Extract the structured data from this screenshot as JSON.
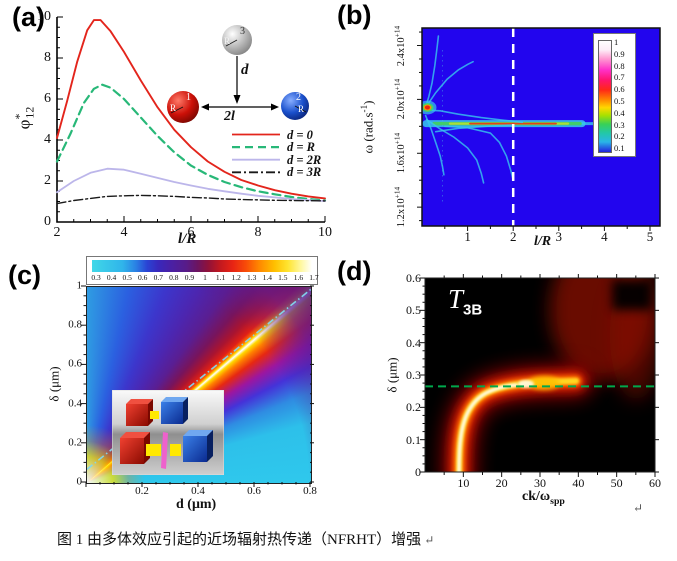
{
  "caption": {
    "text": "图 1  由多体效应引起的近场辐射热传递（NFRHT）增强",
    "return_mark": "↵"
  },
  "chart_data": [
    {
      "type": "line",
      "panel": "(a)",
      "xlabel": "l/R",
      "ylabel": "φ*12",
      "ylabel_parts": {
        "base": "φ",
        "sup": "*",
        "sub": "12"
      },
      "xlim": [
        2,
        10
      ],
      "ylim": [
        0,
        10
      ],
      "x_ticks": [
        "2",
        "4",
        "6",
        "8",
        "10"
      ],
      "y_ticks": [
        "0",
        "2",
        "4",
        "6",
        "8",
        "10"
      ],
      "legend": [
        {
          "label": "d = 0",
          "color": "#e3251c",
          "dash": "none"
        },
        {
          "label": "d = R",
          "color": "#28b878",
          "dash": "8,5"
        },
        {
          "label": "d = 2R",
          "color": "#bcb6ea",
          "dash": "none"
        },
        {
          "label": "d = 3R",
          "color": "#1a1a1a",
          "dash": "9,3,2,3"
        }
      ],
      "series": [
        {
          "name": "d = 0",
          "color": "#e3251c",
          "width": 1.9,
          "dash": "",
          "points": [
            [
              2,
              4.1
            ],
            [
              2.3,
              5.9
            ],
            [
              2.6,
              7.8
            ],
            [
              2.9,
              9.35
            ],
            [
              3.1,
              9.85
            ],
            [
              3.3,
              9.85
            ],
            [
              3.6,
              9.3
            ],
            [
              4,
              8.3
            ],
            [
              4.5,
              6.9
            ],
            [
              5,
              5.6
            ],
            [
              5.5,
              4.5
            ],
            [
              6,
              3.65
            ],
            [
              6.5,
              2.95
            ],
            [
              7,
              2.45
            ],
            [
              7.5,
              2.05
            ],
            [
              8,
              1.78
            ],
            [
              8.5,
              1.55
            ],
            [
              9,
              1.38
            ],
            [
              9.5,
              1.25
            ],
            [
              10,
              1.15
            ]
          ]
        },
        {
          "name": "d = R",
          "color": "#28b878",
          "width": 2.2,
          "dash": "8,5",
          "points": [
            [
              2,
              2.95
            ],
            [
              2.4,
              4.3
            ],
            [
              2.8,
              5.8
            ],
            [
              3.1,
              6.5
            ],
            [
              3.35,
              6.7
            ],
            [
              3.6,
              6.55
            ],
            [
              4,
              6.0
            ],
            [
              4.5,
              5.1
            ],
            [
              5,
              4.2
            ],
            [
              5.5,
              3.4
            ],
            [
              6,
              2.75
            ],
            [
              6.5,
              2.3
            ],
            [
              7,
              1.95
            ],
            [
              7.5,
              1.7
            ],
            [
              8,
              1.5
            ],
            [
              8.5,
              1.35
            ],
            [
              9,
              1.22
            ],
            [
              9.5,
              1.12
            ],
            [
              10,
              1.05
            ]
          ]
        },
        {
          "name": "d = 2R",
          "color": "#bcb6ea",
          "width": 1.8,
          "dash": "",
          "points": [
            [
              2,
              1.45
            ],
            [
              2.5,
              2.0
            ],
            [
              3,
              2.4
            ],
            [
              3.5,
              2.6
            ],
            [
              4,
              2.55
            ],
            [
              4.5,
              2.35
            ],
            [
              5,
              2.15
            ],
            [
              5.5,
              1.95
            ],
            [
              6,
              1.78
            ],
            [
              6.5,
              1.62
            ],
            [
              7,
              1.5
            ],
            [
              7.5,
              1.38
            ],
            [
              8,
              1.28
            ],
            [
              8.5,
              1.2
            ],
            [
              9,
              1.12
            ],
            [
              9.5,
              1.07
            ],
            [
              10,
              1.02
            ]
          ]
        },
        {
          "name": "d = 3R",
          "color": "#1a1a1a",
          "width": 1.4,
          "dash": "9,3,2,3",
          "points": [
            [
              2,
              0.9
            ],
            [
              2.5,
              1.05
            ],
            [
              3,
              1.15
            ],
            [
              3.5,
              1.25
            ],
            [
              4,
              1.28
            ],
            [
              4.5,
              1.3
            ],
            [
              5,
              1.28
            ],
            [
              5.5,
              1.25
            ],
            [
              6,
              1.2
            ],
            [
              6.5,
              1.17
            ],
            [
              7,
              1.12
            ],
            [
              7.5,
              1.1
            ],
            [
              8,
              1.08
            ],
            [
              8.5,
              1.06
            ],
            [
              9,
              1.05
            ],
            [
              9.5,
              1.04
            ],
            [
              10,
              1.03
            ]
          ]
        }
      ],
      "inset": {
        "sphere1": "1",
        "sphere2": "2",
        "sphere3": "3",
        "r_label": "R",
        "d_label": "d",
        "sep_label": "2l"
      }
    },
    {
      "type": "heatmap",
      "panel": "(b)",
      "xlabel": "l/R",
      "ylabel": "ω (rad.s-1)",
      "ylabel_parts": {
        "base": "ω (rad.s",
        "sup": "-1",
        "end": ")"
      },
      "xlim": [
        0,
        5
      ],
      "ylim_1e14": [
        1.06,
        2.53
      ],
      "x_ticks": [
        "1",
        "2",
        "3",
        "4",
        "5"
      ],
      "y_ticks": [
        {
          "base": "1.2x10",
          "sup": "+14",
          "value": 1.2
        },
        {
          "base": "1.6x10",
          "sup": "+14",
          "value": 1.6
        },
        {
          "base": "2.0x10",
          "sup": "+14",
          "value": 2.0
        },
        {
          "base": "2.4x10",
          "sup": "+14",
          "value": 2.4
        }
      ],
      "background": "#2205ee",
      "colorbar": {
        "values": [
          "1",
          "0.9",
          "0.8",
          "0.7",
          "0.6",
          "0.5",
          "0.4",
          "0.3",
          "0.2",
          "0.1"
        ]
      },
      "dashed_guide_x": 2,
      "resonance_band": {
        "omega_1e14": 1.82,
        "x_start": 0.15,
        "x_end": 4.1
      },
      "hotspot": {
        "x": 0.12,
        "omega_1e14": 1.94
      },
      "branches": [
        [
          [
            0.07,
            1.93
          ],
          [
            0.15,
            2.02
          ],
          [
            0.22,
            2.12
          ],
          [
            0.28,
            2.25
          ],
          [
            0.33,
            2.38
          ],
          [
            0.36,
            2.47
          ]
        ],
        [
          [
            0.1,
            1.95
          ],
          [
            0.3,
            2.05
          ],
          [
            0.55,
            2.15
          ],
          [
            0.8,
            2.22
          ],
          [
            1.0,
            2.26
          ],
          [
            1.12,
            2.28
          ]
        ],
        [
          [
            0.12,
            1.92
          ],
          [
            0.4,
            1.915
          ],
          [
            0.8,
            1.89
          ],
          [
            1.3,
            1.865
          ],
          [
            1.8,
            1.845
          ],
          [
            2.2,
            1.83
          ]
        ],
        [
          [
            0.08,
            1.88
          ],
          [
            0.2,
            1.78
          ],
          [
            0.3,
            1.68
          ],
          [
            0.4,
            1.58
          ],
          [
            0.45,
            1.5
          ],
          [
            0.48,
            1.44
          ]
        ],
        [
          [
            0.1,
            1.85
          ],
          [
            0.4,
            1.78
          ],
          [
            0.7,
            1.72
          ],
          [
            1.0,
            1.64
          ],
          [
            1.2,
            1.55
          ],
          [
            1.3,
            1.45
          ],
          [
            1.35,
            1.38
          ]
        ],
        [
          [
            0.5,
            1.8
          ],
          [
            1.0,
            1.79
          ],
          [
            1.5,
            1.75
          ],
          [
            1.7,
            1.68
          ],
          [
            1.85,
            1.58
          ],
          [
            1.95,
            1.47
          ],
          [
            2.0,
            1.4
          ]
        ],
        [
          [
            0.3,
            1.76
          ],
          [
            0.8,
            1.785
          ],
          [
            1.4,
            1.8
          ],
          [
            2.0,
            1.81
          ]
        ]
      ]
    },
    {
      "type": "heatmap",
      "panel": "(c)",
      "xlabel": "d (μm)",
      "ylabel": "δ (μm)",
      "xlim": [
        0,
        0.8
      ],
      "ylim": [
        0,
        1
      ],
      "x_ticks": [
        "0.2",
        "0.4",
        "0.6",
        "0.8"
      ],
      "y_ticks": [
        "0",
        "0.2",
        "0.4",
        "0.6",
        "0.8",
        "1"
      ],
      "colorbar": {
        "values": [
          "0.3",
          "0.4",
          "0.5",
          "0.6",
          "0.7",
          "0.8",
          "0.9",
          "1",
          "1.1",
          "1.2",
          "1.3",
          "1.4",
          "1.5",
          "1.6",
          "1.7"
        ]
      },
      "guide_line": {
        "from": [
          0,
          0.07
        ],
        "to": [
          0.81,
          1.0
        ]
      },
      "hot_ridge": "enhancement fan from origin along δ≈1.25·d; ridge ≈1.7 (white), background ≈0.3 (cyan)"
    },
    {
      "type": "heatmap",
      "panel": "(d)",
      "xlabel": "ck/ωspp",
      "xlabel_parts": {
        "base": "ck/ω",
        "sub": "spp"
      },
      "ylabel": "δ (μm)",
      "xlim": [
        0,
        60
      ],
      "ylim": [
        0,
        0.6
      ],
      "x_ticks": [
        "10",
        "20",
        "30",
        "40",
        "50",
        "60"
      ],
      "y_ticks": [
        "0",
        "0.1",
        "0.2",
        "0.3",
        "0.4",
        "0.5",
        "0.6"
      ],
      "annotation": {
        "base": "T",
        "sub": "3B"
      },
      "dashed_guide_delta": 0.265,
      "mode_curve": [
        [
          9,
          0
        ],
        [
          10,
          0.05
        ],
        [
          11.5,
          0.1
        ],
        [
          13.5,
          0.15
        ],
        [
          17,
          0.2
        ],
        [
          22,
          0.25
        ],
        [
          30,
          0.272
        ],
        [
          38,
          0.278
        ]
      ],
      "vertical_band_x": 40,
      "return_mark": "↵"
    }
  ]
}
